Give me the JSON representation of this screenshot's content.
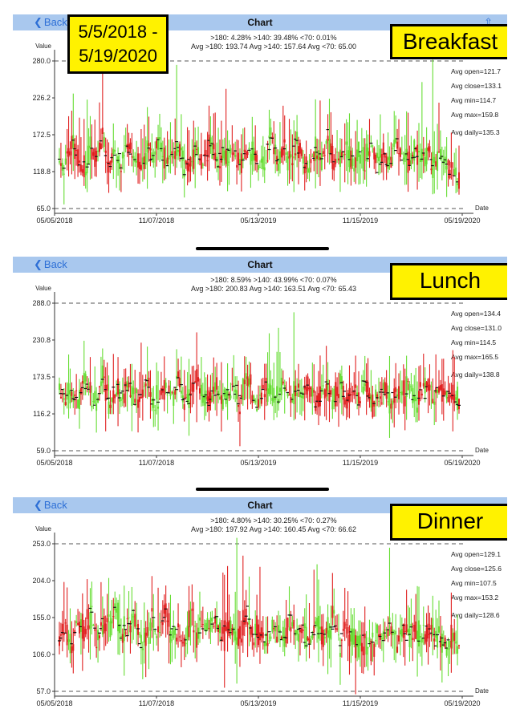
{
  "range_label": "5/5/2018 -\n5/19/2020",
  "panels": [
    {
      "meal": "Breakfast",
      "nav": {
        "back": "Back",
        "title": "Chart"
      },
      "stats_line1": ">180: 4.28%     >140: 39.48%     <70: 0.01%",
      "stats_line2": "Avg >180: 193.74   Avg >140: 157.64   Avg <70: 65.00",
      "value_label": "Value",
      "date_label": "Date",
      "avgs": [
        "Avg open=121.7",
        "Avg close=133.1",
        "Avg min=114.7",
        "Avg max=159.8",
        "Avg daily=135.3"
      ]
    },
    {
      "meal": "Lunch",
      "nav": {
        "back": "Back",
        "title": "Chart"
      },
      "stats_line1": ">180: 8.59%     >140: 43.99%     <70: 0.07%",
      "stats_line2": "Avg >180: 200.83   Avg >140: 163.51   Avg <70: 65.43",
      "value_label": "Value",
      "date_label": "Date",
      "avgs": [
        "Avg open=134.4",
        "Avg close=131.0",
        "Avg min=114.5",
        "Avg max=165.5",
        "Avg daily=138.8"
      ]
    },
    {
      "meal": "Dinner",
      "nav": {
        "back": "Back",
        "title": "Chart"
      },
      "stats_line1": ">180: 4.80%     >140: 30.25%     <70: 0.27%",
      "stats_line2": "Avg >180: 197.92   Avg >140: 160.45   Avg <70: 66.62",
      "value_label": "Value",
      "date_label": "Date",
      "avgs": [
        "Avg open=129.1",
        "Avg close=125.6",
        "Avg min=107.5",
        "Avg max=153.2",
        "Avg daily=128.6"
      ]
    }
  ],
  "colors": {
    "up": "#66dd33",
    "down": "#e02020",
    "nav": "#a9c8ee",
    "highlight": "#fff200",
    "link": "#2d6fd6"
  },
  "chart_data": [
    {
      "type": "candlestick",
      "title": "Breakfast",
      "ylabel": "Value",
      "xlabel": "Date",
      "yticks": [
        "280.0",
        "226.2",
        "172.5",
        "118.8",
        "65.0"
      ],
      "ytick_values": [
        280.0,
        226.2,
        172.5,
        118.8,
        65.0
      ],
      "xticks": [
        "05/05/2018",
        "11/07/2018",
        "05/13/2019",
        "11/15/2019",
        "05/19/2020"
      ],
      "ylim": [
        65.0,
        280.0
      ],
      "ref_lines": [
        280.0,
        65.0
      ],
      "series": [
        {
          "values": [
            135,
            128,
            160,
            142,
            120,
            150,
            138,
            170,
            125,
            145,
            132,
            158,
            140,
            127,
            148,
            136,
            165,
            130,
            143,
            152,
            124,
            139,
            147,
            133,
            161,
            128,
            144,
            137,
            155,
            129,
            142,
            150,
            126,
            138,
            168,
            134,
            146,
            131,
            159,
            140,
            122,
            149,
            136,
            171,
            127,
            143,
            153,
            130,
            141,
            137,
            157,
            125,
            145,
            132,
            162,
            139,
            128,
            151,
            135,
            146,
            124,
            140,
            133,
            115,
            110
          ]
        }
      ],
      "open_close_min_max_avg": {
        "open": 121.7,
        "close": 133.1,
        "min": 114.7,
        "max": 159.8,
        "daily": 135.3
      },
      "grid": false
    },
    {
      "type": "candlestick",
      "title": "Lunch",
      "ylabel": "Value",
      "xlabel": "Date",
      "yticks": [
        "288.0",
        "230.8",
        "173.5",
        "116.2",
        "59.0"
      ],
      "ytick_values": [
        288.0,
        230.8,
        173.5,
        116.2,
        59.0
      ],
      "xticks": [
        "05/05/2018",
        "11/07/2018",
        "05/13/2019",
        "11/15/2019",
        "05/19/2020"
      ],
      "ylim": [
        59.0,
        288.0
      ],
      "ref_lines": [
        288.0,
        59.0
      ],
      "series": [
        {
          "values": [
            160,
            140,
            150,
            132,
            168,
            145,
            138,
            175,
            130,
            155,
            142,
            163,
            136,
            149,
            171,
            128,
            144,
            158,
            139,
            166,
            133,
            151,
            176,
            141,
            137,
            160,
            129,
            147,
            154,
            135,
            181,
            143,
            131,
            162,
            150,
            138,
            167,
            134,
            153,
            141,
            172,
            130,
            146,
            157,
            139,
            164,
            136,
            149,
            140,
            170,
            132,
            145,
            158,
            137,
            150,
            143,
            161,
            135,
            148,
            155,
            144,
            162,
            140,
            150,
            135
          ]
        }
      ],
      "open_close_min_max_avg": {
        "open": 134.4,
        "close": 131.0,
        "min": 114.5,
        "max": 165.5,
        "daily": 138.8
      },
      "grid": false
    },
    {
      "type": "candlestick",
      "title": "Dinner",
      "ylabel": "Value",
      "xlabel": "Date",
      "yticks": [
        "253.0",
        "204.0",
        "155.0",
        "106.0",
        "57.0"
      ],
      "ytick_values": [
        253.0,
        204.0,
        155.0,
        106.0,
        57.0
      ],
      "xticks": [
        "05/05/2018",
        "11/07/2018",
        "05/13/2019",
        "11/15/2019",
        "05/19/2020"
      ],
      "ylim": [
        57.0,
        253.0
      ],
      "ref_lines": [
        253.0,
        57.0
      ],
      "series": [
        {
          "values": [
            125,
            140,
            118,
            150,
            132,
            160,
            122,
            145,
            138,
            170,
            128,
            142,
            155,
            120,
            136,
            148,
            126,
            165,
            133,
            141,
            119,
            152,
            130,
            144,
            137,
            158,
            124,
            146,
            135,
            128,
            161,
            131,
            143,
            121,
            149,
            139,
            127,
            154,
            134,
            142,
            118,
            147,
            129,
            138,
            151,
            125,
            140,
            132,
            116,
            124,
            120,
            135,
            128,
            142,
            122,
            137,
            130,
            145,
            126,
            139,
            133,
            127,
            120,
            131,
            118
          ]
        }
      ],
      "open_close_min_max_avg": {
        "open": 129.1,
        "close": 125.6,
        "min": 107.5,
        "max": 153.2,
        "daily": 128.6
      },
      "grid": false
    }
  ]
}
